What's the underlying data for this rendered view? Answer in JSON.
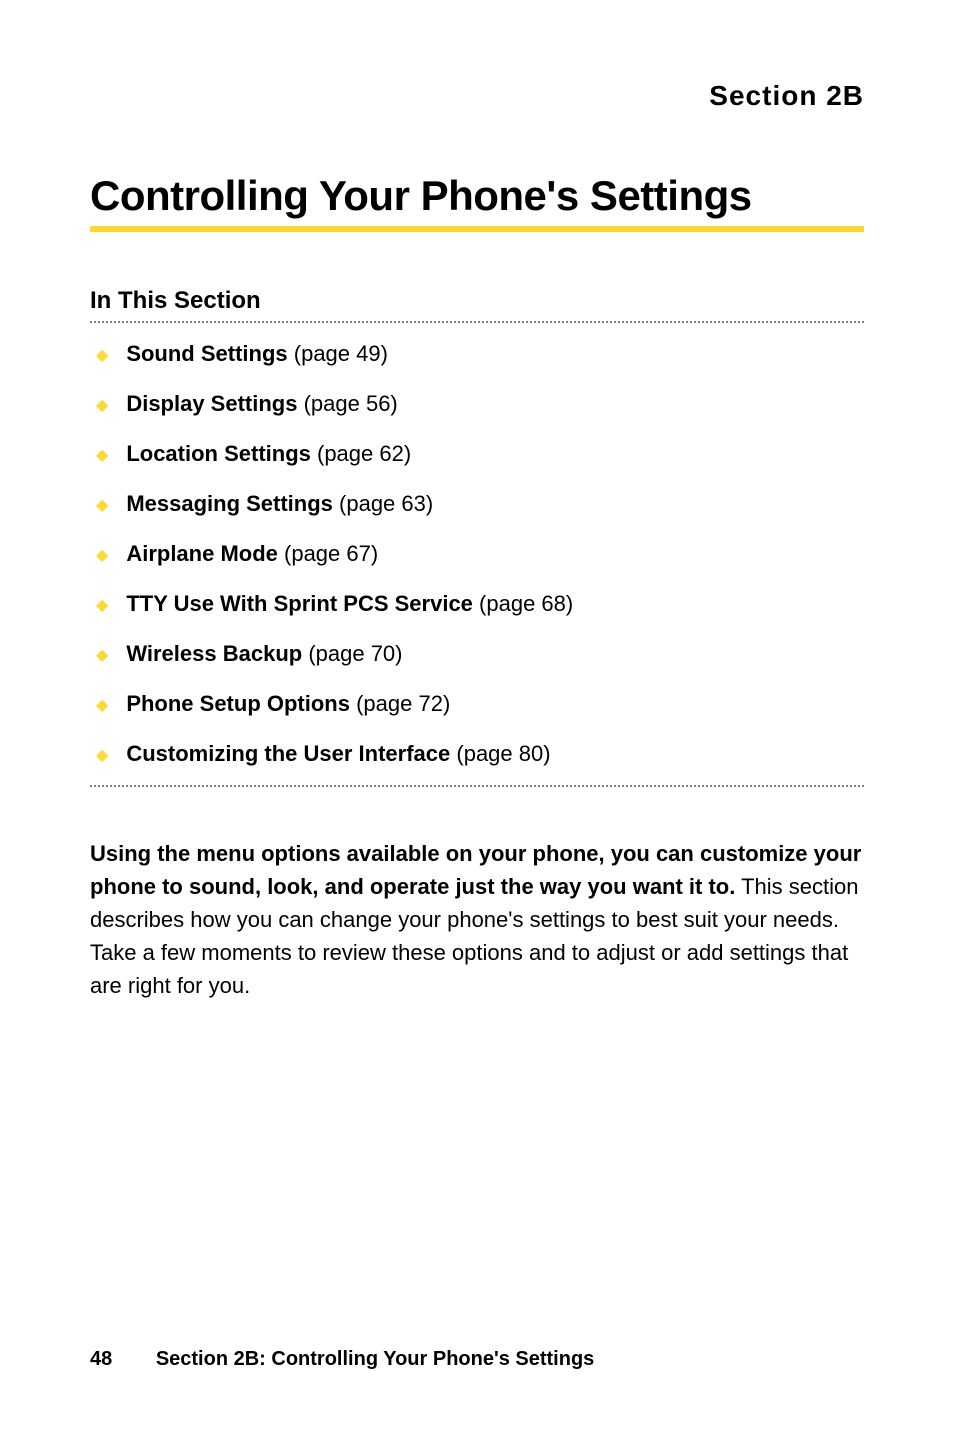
{
  "colors": {
    "background": "#ffffff",
    "text": "#000000",
    "accent": "#fdd835",
    "dotted": "#808080"
  },
  "header": {
    "section_label": "Section 2B"
  },
  "title": "Controlling Your Phone's Settings",
  "in_section_label": "In This Section",
  "bullets": [
    {
      "bold": "Sound Settings",
      "rest": " (page 49)"
    },
    {
      "bold": "Display Settings",
      "rest": " (page 56)"
    },
    {
      "bold": "Location Settings",
      "rest": " (page 62)"
    },
    {
      "bold": "Messaging Settings",
      "rest": " (page 63)"
    },
    {
      "bold": "Airplane Mode",
      "rest": " (page 67)"
    },
    {
      "bold": "TTY Use With Sprint PCS Service",
      "rest": " (page 68)"
    },
    {
      "bold": "Wireless Backup",
      "rest": " (page 70)"
    },
    {
      "bold": "Phone Setup Options",
      "rest": " (page 72)"
    },
    {
      "bold": "Customizing the User Interface",
      "rest": " (page 80)"
    }
  ],
  "body": {
    "bold_lead": "Using the menu options available on your phone, you can customize your phone to sound, look, and operate just the way you want it to.",
    "rest": " This section describes how you can change your phone's settings to best suit your needs. Take a few moments to review these options and to adjust or add settings that are right for you."
  },
  "footer": {
    "page_number": "48",
    "text": "Section 2B: Controlling Your Phone's Settings"
  }
}
